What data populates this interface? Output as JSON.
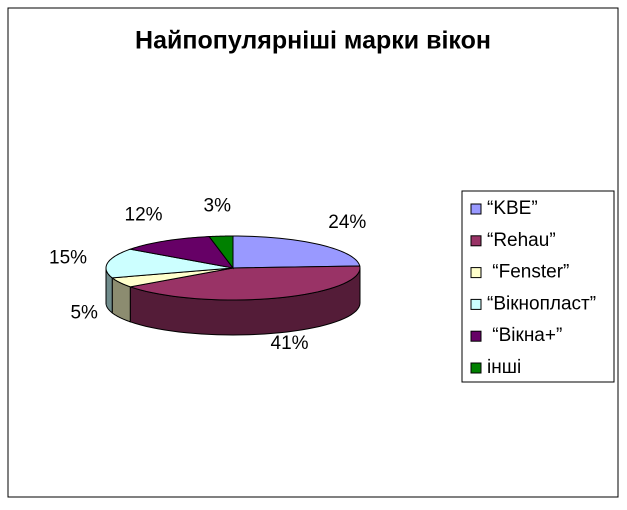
{
  "chart_data": {
    "type": "pie",
    "title": "Найпопулярніші марки вікон",
    "categories": [
      "“KBE”",
      "“Rehau”",
      " “Fenster”",
      "“Вікнопласт”",
      " “Вікна+”",
      "інші"
    ],
    "values": [
      24,
      41,
      5,
      15,
      12,
      3
    ],
    "value_labels": [
      "24%",
      "41%",
      "5%",
      "15%",
      "12%",
      "3%"
    ],
    "colors": [
      "#9999ff",
      "#993366",
      "#ffffcc",
      "#ccffff",
      "#660066",
      "#008000"
    ],
    "legend": "right"
  }
}
